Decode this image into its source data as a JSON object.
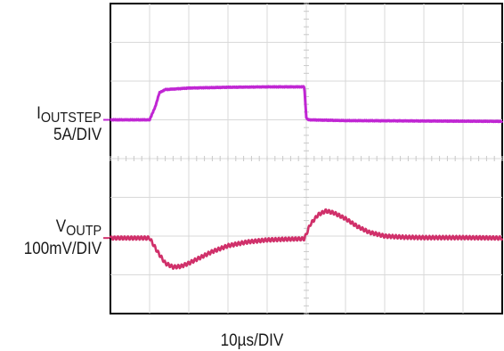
{
  "chart_data": {
    "type": "line",
    "title": "",
    "xlabel": "10µs/DIV",
    "x_divisions": 10,
    "y_divisions": 8,
    "grid": true,
    "series": [
      {
        "name": "IOUTSTEP",
        "color": "#c026d3",
        "scale": "5A/DIV",
        "label_main": "I",
        "label_sub": "OUTSTEP",
        "x_div": [
          0,
          1.0,
          1.15,
          1.25,
          1.4,
          2,
          3,
          4,
          4.95,
          5.0,
          5.05,
          6,
          8,
          10
        ],
        "y_div": [
          5.0,
          5.0,
          5.35,
          5.7,
          5.78,
          5.82,
          5.84,
          5.85,
          5.85,
          5.05,
          5.0,
          4.98,
          4.97,
          4.96
        ]
      },
      {
        "name": "VOUTP",
        "color": "#d0306a",
        "scale": "100mV/DIV",
        "label_main": "V",
        "label_sub": "OUTP",
        "x_div": [
          0,
          1.0,
          1.2,
          1.4,
          1.6,
          1.8,
          2.0,
          2.3,
          2.6,
          3.0,
          3.5,
          4.0,
          4.5,
          4.95,
          5.1,
          5.3,
          5.5,
          5.7,
          6.0,
          6.3,
          6.6,
          7.0,
          7.5,
          8.0,
          9.0,
          10.0
        ],
        "y_div": [
          1.95,
          1.95,
          1.6,
          1.3,
          1.2,
          1.22,
          1.3,
          1.45,
          1.6,
          1.75,
          1.85,
          1.9,
          1.92,
          1.93,
          2.3,
          2.55,
          2.65,
          2.6,
          2.45,
          2.25,
          2.1,
          2.0,
          1.97,
          1.96,
          1.96,
          1.95
        ]
      }
    ]
  }
}
